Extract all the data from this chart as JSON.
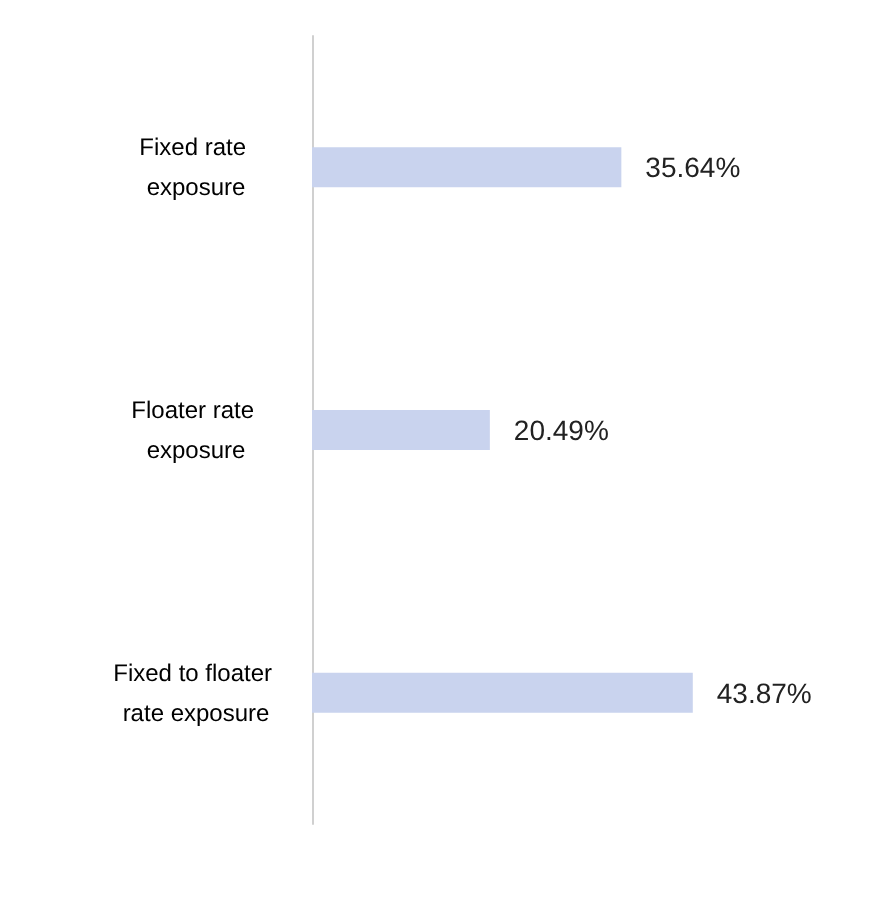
{
  "chart_data": {
    "type": "bar",
    "orientation": "horizontal",
    "categories": [
      "Fixed rate exposure",
      "Floater rate exposure",
      "Fixed to floater rate exposure"
    ],
    "values": [
      35.64,
      20.49,
      43.87
    ],
    "value_labels": [
      "35.64%",
      "20.49%",
      "43.87%"
    ],
    "color": "#c9d3ee"
  }
}
